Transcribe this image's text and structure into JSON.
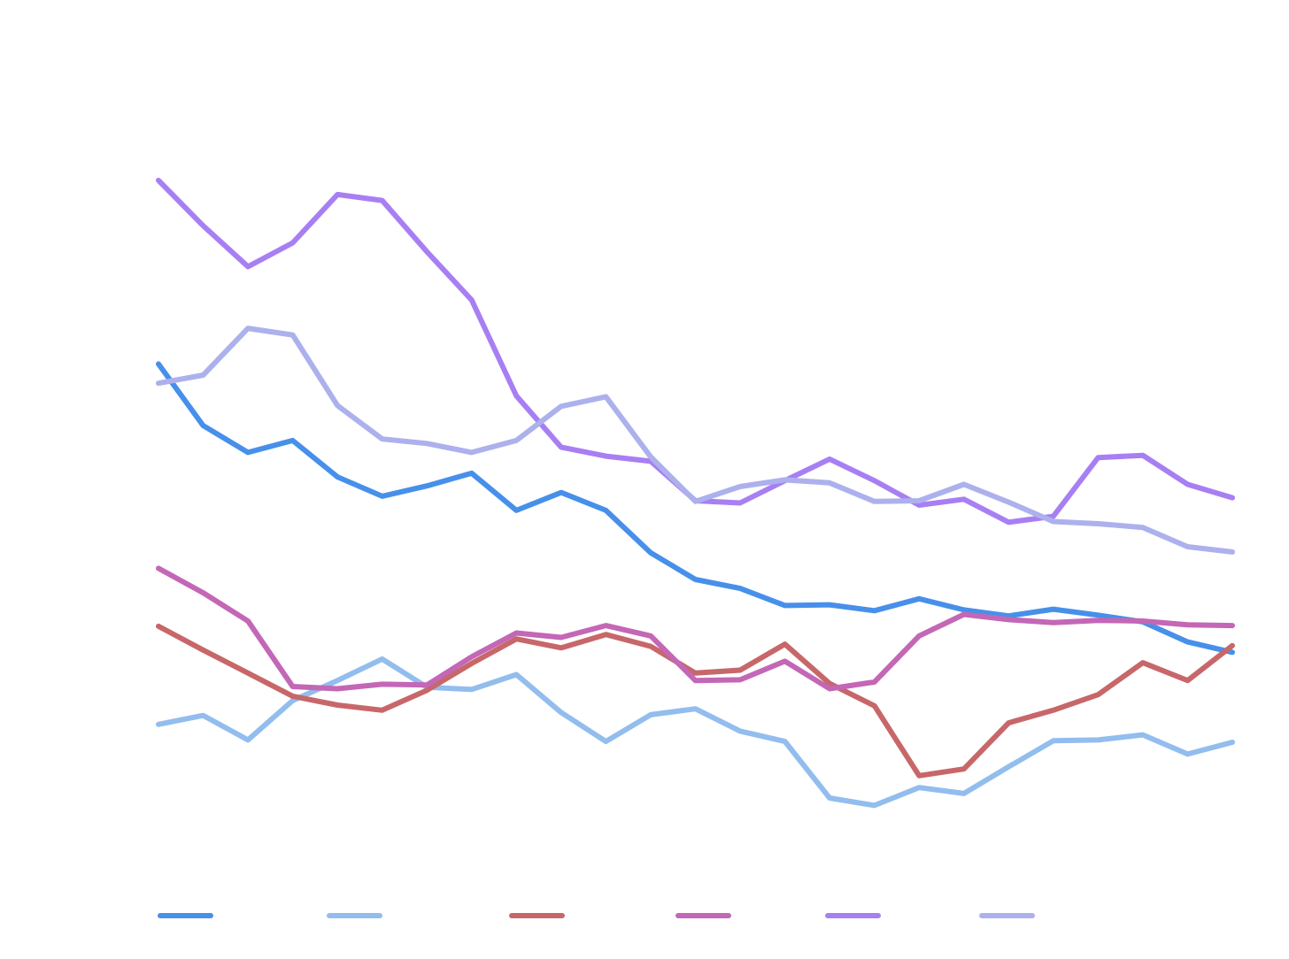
{
  "chart_data": {
    "type": "line",
    "title": "",
    "xlabel": "",
    "ylabel": "",
    "x": [
      0,
      1,
      2,
      3,
      4,
      5,
      6,
      7,
      8,
      9,
      10,
      11,
      12,
      13,
      14,
      15,
      16,
      17,
      18,
      19,
      20,
      21,
      22,
      23,
      24
    ],
    "ylim": [
      0,
      100
    ],
    "grid": false,
    "legend_position": "bottom",
    "series": [
      {
        "color": "#4790ea",
        "values": [
          66.5,
          58.2,
          54.6,
          56.2,
          51.3,
          48.7,
          50.1,
          51.8,
          46.8,
          49.2,
          46.8,
          41.1,
          37.5,
          36.3,
          34.0,
          34.1,
          33.3,
          34.9,
          33.4,
          32.6,
          33.5,
          32.7,
          31.8,
          29.1,
          27.7
        ]
      },
      {
        "color": "#92bdee",
        "values": [
          18.0,
          19.2,
          15.9,
          21.2,
          23.9,
          26.8,
          23.0,
          22.7,
          24.7,
          19.6,
          15.7,
          19.3,
          20.1,
          17.1,
          15.7,
          8.1,
          7.1,
          9.5,
          8.7,
          12.3,
          15.8,
          15.9,
          16.6,
          14.0,
          15.6
        ]
      },
      {
        "color": "#c7676a",
        "values": [
          31.2,
          28.0,
          24.9,
          21.8,
          20.6,
          19.9,
          22.6,
          26.2,
          29.5,
          28.3,
          30.1,
          28.5,
          24.9,
          25.3,
          28.8,
          23.5,
          20.5,
          11.1,
          12.0,
          18.2,
          19.9,
          22.0,
          26.3,
          23.9,
          28.6
        ]
      },
      {
        "color": "#c367b6",
        "values": [
          39.0,
          35.7,
          31.9,
          23.1,
          22.8,
          23.4,
          23.3,
          27.1,
          30.3,
          29.7,
          31.3,
          29.9,
          23.9,
          24.0,
          26.5,
          22.8,
          23.7,
          29.9,
          32.8,
          32.1,
          31.7,
          32.0,
          31.9,
          31.4,
          31.3
        ]
      },
      {
        "color": "#a87ff3",
        "values": [
          91.2,
          85.1,
          79.6,
          82.8,
          89.3,
          88.5,
          81.6,
          75.1,
          62.2,
          55.3,
          54.1,
          53.4,
          48.1,
          47.8,
          50.8,
          53.7,
          50.8,
          47.5,
          48.3,
          45.2,
          46.0,
          53.9,
          54.2,
          50.3,
          48.5
        ]
      },
      {
        "color": "#acb1ed",
        "values": [
          63.9,
          65.0,
          71.3,
          70.4,
          60.9,
          56.4,
          55.8,
          54.6,
          56.2,
          60.8,
          62.1,
          54.0,
          48.0,
          50.0,
          50.9,
          50.5,
          48.0,
          48.1,
          50.3,
          47.9,
          45.3,
          45.0,
          44.5,
          41.9,
          41.2
        ]
      }
    ]
  }
}
